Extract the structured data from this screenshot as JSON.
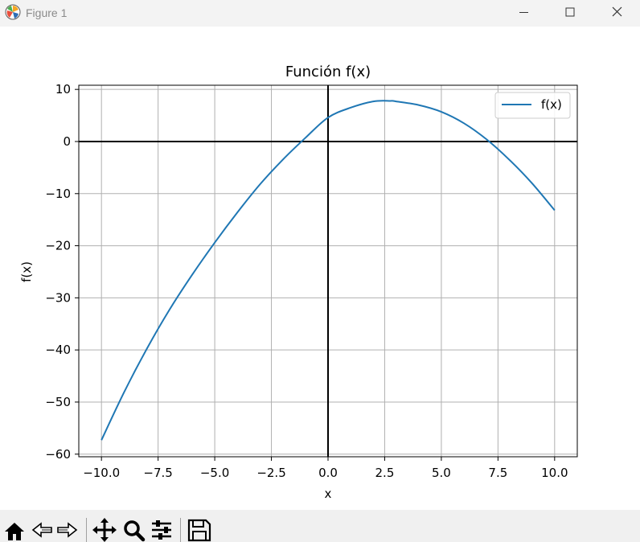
{
  "window": {
    "title": "Figure 1",
    "icons": [
      "matplotlib-icon",
      "minimize-icon",
      "maximize-icon",
      "close-icon"
    ]
  },
  "toolbar": {
    "buttons": [
      "home-icon",
      "back-icon",
      "forward-icon",
      "pan-icon",
      "zoom-icon",
      "configure-subplots-icon",
      "save-icon"
    ]
  },
  "chart_data": {
    "type": "line",
    "title": "Función f(x)",
    "xlabel": "x",
    "ylabel": "f(x)",
    "xlim": [
      -11.0,
      11.0
    ],
    "ylim": [
      -60.5,
      10.8
    ],
    "xticks": [
      -10.0,
      -7.5,
      -5.0,
      -2.5,
      0.0,
      2.5,
      5.0,
      7.5,
      10.0
    ],
    "xtick_labels": [
      "−10.0",
      "−7.5",
      "−5.0",
      "−2.5",
      "0.0",
      "2.5",
      "5.0",
      "7.5",
      "10.0"
    ],
    "yticks": [
      10,
      0,
      -10,
      -20,
      -30,
      -40,
      -50,
      -60
    ],
    "ytick_labels": [
      "10",
      "0",
      "−10",
      "−20",
      "−30",
      "−40",
      "−50",
      "−60"
    ],
    "grid": true,
    "axis_lines_at_zero": true,
    "legend": "top-right",
    "series": [
      {
        "name": "f(x)",
        "color": "#1f77b4",
        "x": [
          -10,
          -9,
          -8,
          -7,
          -6,
          -5,
          -4,
          -3,
          -2,
          -1,
          0,
          1,
          2,
          2.75,
          3,
          4,
          5,
          6,
          7,
          8,
          9,
          10
        ],
        "y": [
          -57.3,
          -48.1,
          -39.8,
          -32.3,
          -25.6,
          -19.4,
          -13.6,
          -8.2,
          -3.5,
          0.7,
          4.6,
          6.5,
          7.7,
          7.8,
          7.7,
          7.0,
          5.7,
          3.5,
          0.4,
          -3.5,
          -8.0,
          -13.2
        ]
      }
    ]
  }
}
